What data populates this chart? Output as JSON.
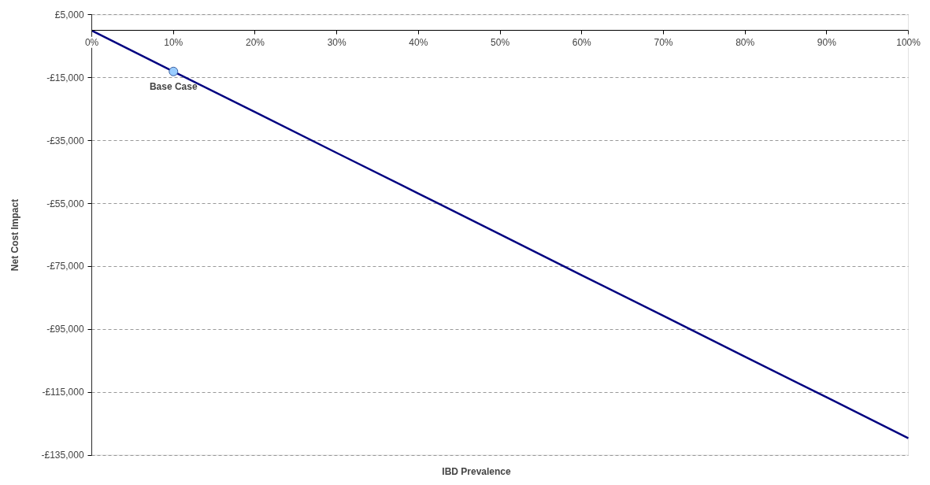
{
  "chart_data": {
    "type": "line",
    "xlabel": "IBD Prevalence",
    "ylabel": "Net Cost Impact",
    "x": [
      0,
      10,
      20,
      30,
      40,
      50,
      60,
      70,
      80,
      90,
      100
    ],
    "series": [
      {
        "color": "#000080",
        "values": [
          0,
          -13000,
          -25900,
          -38900,
          -51800,
          -64800,
          -77800,
          -90700,
          -103700,
          -116600,
          -129600
        ]
      },
      {
        "type": "scatter",
        "marker": "circle",
        "color": "#99ccff",
        "x": [
          10
        ],
        "values": [
          -13000
        ]
      }
    ],
    "annotations": [
      {
        "text": "Base Case",
        "x": 10,
        "y": -13000
      }
    ],
    "xlim": [
      0,
      100
    ],
    "ylim": [
      -135000,
      5000
    ],
    "xticks": [
      {
        "value": 0,
        "label": "0%"
      },
      {
        "value": 10,
        "label": "10%"
      },
      {
        "value": 20,
        "label": "20%"
      },
      {
        "value": 30,
        "label": "30%"
      },
      {
        "value": 40,
        "label": "40%"
      },
      {
        "value": 50,
        "label": "50%"
      },
      {
        "value": 60,
        "label": "60%"
      },
      {
        "value": 70,
        "label": "70%"
      },
      {
        "value": 80,
        "label": "80%"
      },
      {
        "value": 90,
        "label": "90%"
      },
      {
        "value": 100,
        "label": "100%"
      }
    ],
    "yticks": [
      {
        "value": 5000,
        "label": "£5,000"
      },
      {
        "value": -15000,
        "label": "-£15,000"
      },
      {
        "value": -35000,
        "label": "-£35,000"
      },
      {
        "value": -55000,
        "label": "-£55,000"
      },
      {
        "value": -75000,
        "label": "-£75,000"
      },
      {
        "value": -95000,
        "label": "-£95,000"
      },
      {
        "value": -115000,
        "label": "-£115,000"
      },
      {
        "value": -135000,
        "label": "-£135,000"
      }
    ],
    "grid": "y",
    "line_style": "solid"
  }
}
